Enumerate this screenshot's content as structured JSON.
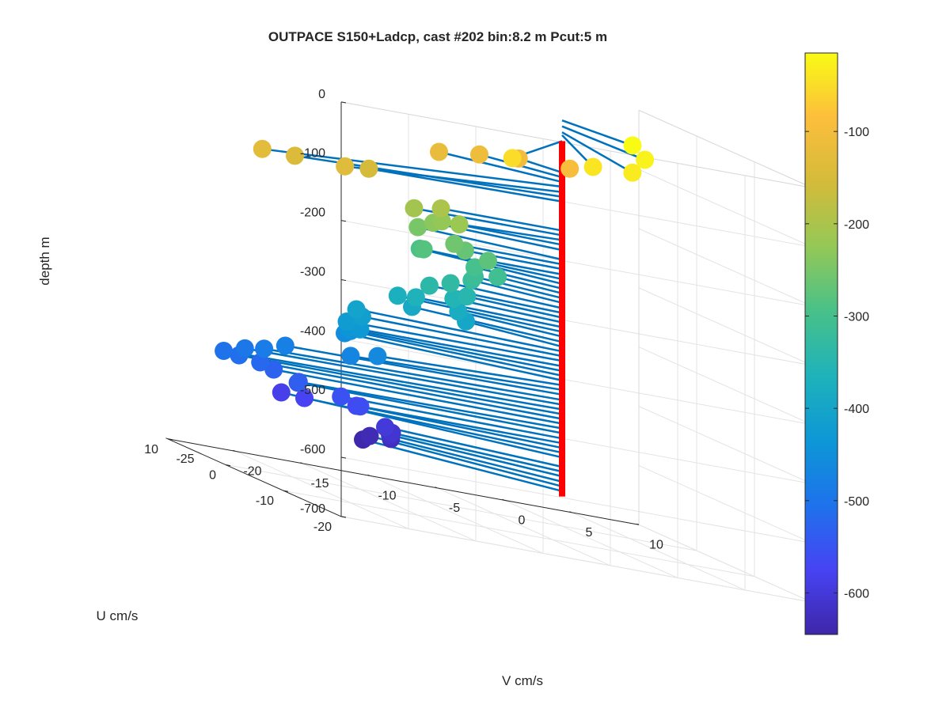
{
  "chart_data": {
    "type": "scatter3d",
    "title": "OUTPACE S150+Ladcp, cast #202 bin:8.2 m  Pcut:5 m",
    "xlabel": "V cm/s",
    "ylabel": "U cm/s",
    "zlabel": "depth m",
    "xlim": [
      -25,
      10
    ],
    "ylim": [
      -20,
      10
    ],
    "zlim": [
      -700,
      0
    ],
    "xticks": [
      "-25",
      "-20",
      "-15",
      "-10",
      "-5",
      "0",
      "5",
      "10"
    ],
    "yticks": [
      "-20",
      "-10",
      "0",
      "10"
    ],
    "zticks": [
      "0",
      "-100",
      "-200",
      "-300",
      "-400",
      "-500",
      "-600",
      "-700"
    ],
    "grid": true,
    "colorbar": {
      "range": [
        -645,
        -15
      ],
      "ticks": [
        "-100",
        "-200",
        "-300",
        "-400",
        "-500",
        "-600"
      ],
      "tick_values": [
        -100,
        -200,
        -300,
        -400,
        -500,
        -600
      ],
      "colormap": [
        "#3e26a8",
        "#4743f4",
        "#1e72ec",
        "#0d97d6",
        "#1eb2bb",
        "#48c189",
        "#94c856",
        "#d4bb3a",
        "#fcbe3c",
        "#f9fb15"
      ]
    },
    "cast_line": {
      "color": "#ff0000",
      "v": 0,
      "u": 0,
      "depth_top": -50,
      "depth_bottom": -650
    },
    "stem_color": "#0072bd",
    "points": [
      {
        "depth": -15,
        "v": 1.8,
        "u": -8.0
      },
      {
        "depth": -25,
        "v": 1.0,
        "u": -12.0
      },
      {
        "depth": -35,
        "v": -2.5,
        "u": -18.0
      },
      {
        "depth": -50,
        "v": -11.0,
        "u": -17.0
      },
      {
        "depth": -40,
        "v": -5.0,
        "u": -17.0
      },
      {
        "depth": -95,
        "v": 0.7,
        "u": 0.3
      },
      {
        "depth": -103,
        "v": -1.5,
        "u": 4.0
      },
      {
        "depth": -111,
        "v": -4.0,
        "u": 5.0
      },
      {
        "depth": -119,
        "v": -7.0,
        "u": 5.0
      },
      {
        "depth": -127,
        "v": -27.0,
        "u": -11.0
      },
      {
        "depth": -136,
        "v": -20.0,
        "u": -9.0
      },
      {
        "depth": -144,
        "v": -22.0,
        "u": -5.0
      },
      {
        "depth": -152,
        "v": -15.0,
        "u": -1.5
      },
      {
        "depth": -201,
        "v": -9.0,
        "u": 0.0
      },
      {
        "depth": -209,
        "v": -11.0,
        "u": 0.0
      },
      {
        "depth": -217,
        "v": -8.5,
        "u": -2.0
      },
      {
        "depth": -225,
        "v": -8.5,
        "u": 1.0
      },
      {
        "depth": -234,
        "v": -8.5,
        "u": 2.5
      },
      {
        "depth": -250,
        "v": -9.0,
        "u": 4.0
      },
      {
        "depth": -258,
        "v": -7.8,
        "u": 0.5
      },
      {
        "depth": -266,
        "v": -7.0,
        "u": 0.5
      },
      {
        "depth": -275,
        "v": -5.5,
        "u": 0.0
      },
      {
        "depth": -283,
        "v": -9.0,
        "u": 3.0
      },
      {
        "depth": -291,
        "v": -8.0,
        "u": 6.0
      },
      {
        "depth": -299,
        "v": -5.0,
        "u": 3.5
      },
      {
        "depth": -307,
        "v": -3.5,
        "u": 3.0
      },
      {
        "depth": -315,
        "v": -5.0,
        "u": 3.5
      },
      {
        "depth": -323,
        "v": -5.0,
        "u": 4.0
      },
      {
        "depth": -332,
        "v": -7.0,
        "u": 3.0
      },
      {
        "depth": -340,
        "v": -9.0,
        "u": 2.0
      },
      {
        "depth": -348,
        "v": -6.0,
        "u": 2.5
      },
      {
        "depth": -356,
        "v": -7.0,
        "u": 2.5
      },
      {
        "depth": -364,
        "v": -10.0,
        "u": 2.0
      },
      {
        "depth": -372,
        "v": -10.5,
        "u": 4.0
      },
      {
        "depth": -380,
        "v": -6.0,
        "u": 4.0
      },
      {
        "depth": -389,
        "v": -9.0,
        "u": 5.0
      },
      {
        "depth": -397,
        "v": -5.0,
        "u": 5.0
      },
      {
        "depth": -405,
        "v": -14.0,
        "u": 3.0
      },
      {
        "depth": -413,
        "v": -14.0,
        "u": 2.0
      },
      {
        "depth": -421,
        "v": -16.0,
        "u": 0.0
      },
      {
        "depth": -430,
        "v": -15.0,
        "u": 0.0
      },
      {
        "depth": -438,
        "v": -15.0,
        "u": 2.0
      },
      {
        "depth": -446,
        "v": -14.0,
        "u": 4.0
      },
      {
        "depth": -454,
        "v": -14.0,
        "u": 5.0
      },
      {
        "depth": -462,
        "v": -15.0,
        "u": -3.0
      },
      {
        "depth": -470,
        "v": -17.0,
        "u": -3.0
      },
      {
        "depth": -478,
        "v": -21.0,
        "u": -1.0
      },
      {
        "depth": -487,
        "v": -23.0,
        "u": -2.0
      },
      {
        "depth": -495,
        "v": -24.0,
        "u": -1.0
      },
      {
        "depth": -503,
        "v": -26.0,
        "u": -2.0
      },
      {
        "depth": -511,
        "v": -24.0,
        "u": 0.0
      },
      {
        "depth": -519,
        "v": -22.0,
        "u": 1.0
      },
      {
        "depth": -527,
        "v": -21.0,
        "u": 1.0
      },
      {
        "depth": -535,
        "v": -20.0,
        "u": -1.0
      },
      {
        "depth": -543,
        "v": -19.0,
        "u": 1.5
      },
      {
        "depth": -552,
        "v": -16.0,
        "u": 1.0
      },
      {
        "depth": -560,
        "v": -15.0,
        "u": 0.0
      },
      {
        "depth": -568,
        "v": -14.0,
        "u": 3.0
      },
      {
        "depth": -576,
        "v": -17.0,
        "u": 5.0
      },
      {
        "depth": -584,
        "v": -17.0,
        "u": 9.0
      },
      {
        "depth": -600,
        "v": -11.0,
        "u": 5.0
      },
      {
        "depth": -608,
        "v": -10.5,
        "u": 5.0
      },
      {
        "depth": -616,
        "v": -10.0,
        "u": 6.5
      },
      {
        "depth": -625,
        "v": -9.5,
        "u": 7.5
      },
      {
        "depth": -633,
        "v": -10.0,
        "u": 10.0
      },
      {
        "depth": -641,
        "v": -10.5,
        "u": 10.0
      }
    ]
  }
}
